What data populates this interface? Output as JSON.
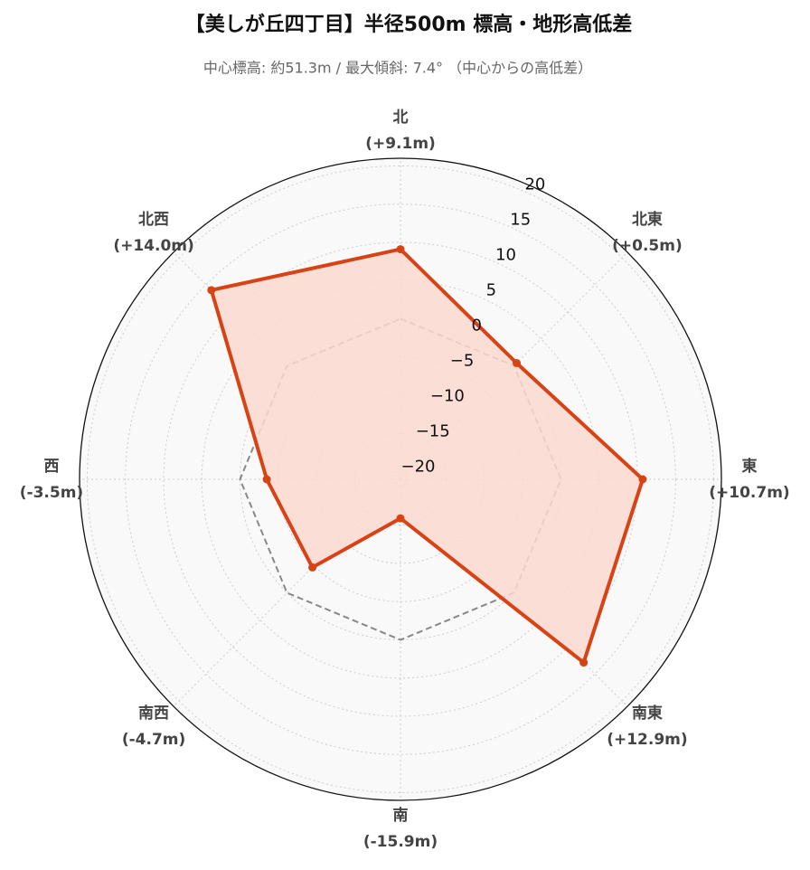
{
  "chart_data": {
    "type": "radar",
    "title": "【美しが丘四丁目】半径500m 標高・地形高低差",
    "subtitle": "中心標高: 約51.3m / 最大傾斜: 7.4° （中心からの高低差）",
    "categories": [
      "北",
      "北東",
      "東",
      "南東",
      "南",
      "南西",
      "西",
      "北西"
    ],
    "values": [
      9.1,
      0.5,
      10.7,
      12.9,
      -15.9,
      -4.7,
      -3.5,
      14.0
    ],
    "value_labels": [
      "(+9.1m)",
      "(+0.5m)",
      "(+10.7m)",
      "(+12.9m)",
      "(-15.9m)",
      "(-4.7m)",
      "(-3.5m)",
      "(+14.0m)"
    ],
    "color": "#d84315",
    "fill_color": "#fbd9d0",
    "reference_value": 0,
    "rlim": [
      -21,
      21
    ],
    "rticks": [
      {
        "value": -20,
        "label": "−20"
      },
      {
        "value": -15,
        "label": "−15"
      },
      {
        "value": -10,
        "label": "−10"
      },
      {
        "value": -5,
        "label": "−5"
      },
      0,
      5,
      10,
      15,
      20
    ],
    "grid": true
  }
}
